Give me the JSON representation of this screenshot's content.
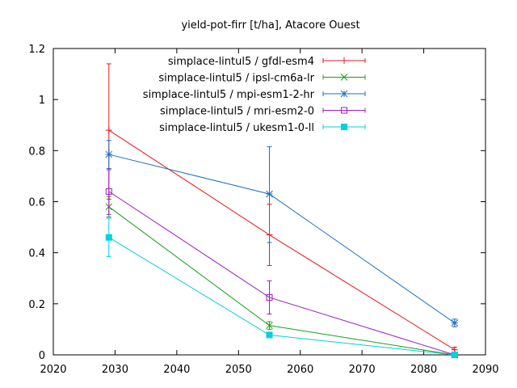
{
  "chart_data": {
    "type": "line",
    "title": "yield-pot-firr [t/ha], Atacore Ouest",
    "xlabel": "",
    "ylabel": "",
    "xlim": [
      2020,
      2090
    ],
    "ylim": [
      0,
      1.2
    ],
    "xticks": [
      2020,
      2030,
      2040,
      2050,
      2060,
      2070,
      2080,
      2090
    ],
    "yticks": [
      0,
      0.2,
      0.4,
      0.6,
      0.8,
      1,
      1.2
    ],
    "grid": false,
    "legend_position": "top-right",
    "series": [
      {
        "name": "simplace-lintul5 / gfdl-esm4",
        "color": "#e31a1c",
        "marker": "plus",
        "points": [
          {
            "x": 2029,
            "y": 0.88,
            "err_low": 0.61,
            "err_high": 1.14
          },
          {
            "x": 2055,
            "y": 0.47,
            "err_low": 0.35,
            "err_high": 0.59
          },
          {
            "x": 2085,
            "y": 0.02,
            "err_low": 0.01,
            "err_high": 0.03
          }
        ]
      },
      {
        "name": "simplace-lintul5 / ipsl-cm6a-lr",
        "color": "#1a9e1a",
        "marker": "x",
        "points": [
          {
            "x": 2029,
            "y": 0.58,
            "err_low": 0.54,
            "err_high": 0.62
          },
          {
            "x": 2055,
            "y": 0.115,
            "err_low": 0.1,
            "err_high": 0.13
          },
          {
            "x": 2085,
            "y": 0.0,
            "err_low": 0.0,
            "err_high": 0.0
          }
        ]
      },
      {
        "name": "simplace-lintul5 / mpi-esm1-2-hr",
        "color": "#1f6fbf",
        "marker": "star",
        "points": [
          {
            "x": 2029,
            "y": 0.785,
            "err_low": 0.73,
            "err_high": 0.84
          },
          {
            "x": 2055,
            "y": 0.63,
            "err_low": 0.44,
            "err_high": 0.815
          },
          {
            "x": 2085,
            "y": 0.125,
            "err_low": 0.11,
            "err_high": 0.14
          }
        ]
      },
      {
        "name": "simplace-lintul5 / mri-esm2-0",
        "color": "#9b1fc0",
        "marker": "square-open",
        "points": [
          {
            "x": 2029,
            "y": 0.64,
            "err_low": 0.55,
            "err_high": 0.725
          },
          {
            "x": 2055,
            "y": 0.225,
            "err_low": 0.16,
            "err_high": 0.29
          },
          {
            "x": 2085,
            "y": 0.0,
            "err_low": 0.0,
            "err_high": 0.0
          }
        ]
      },
      {
        "name": "simplace-lintul5 / ukesm1-0-ll",
        "color": "#00d0e0",
        "marker": "square-filled",
        "points": [
          {
            "x": 2029,
            "y": 0.46,
            "err_low": 0.385,
            "err_high": 0.535
          },
          {
            "x": 2055,
            "y": 0.078,
            "err_low": 0.07,
            "err_high": 0.086
          },
          {
            "x": 2085,
            "y": 0.0,
            "err_low": 0.0,
            "err_high": 0.0
          }
        ]
      }
    ]
  }
}
